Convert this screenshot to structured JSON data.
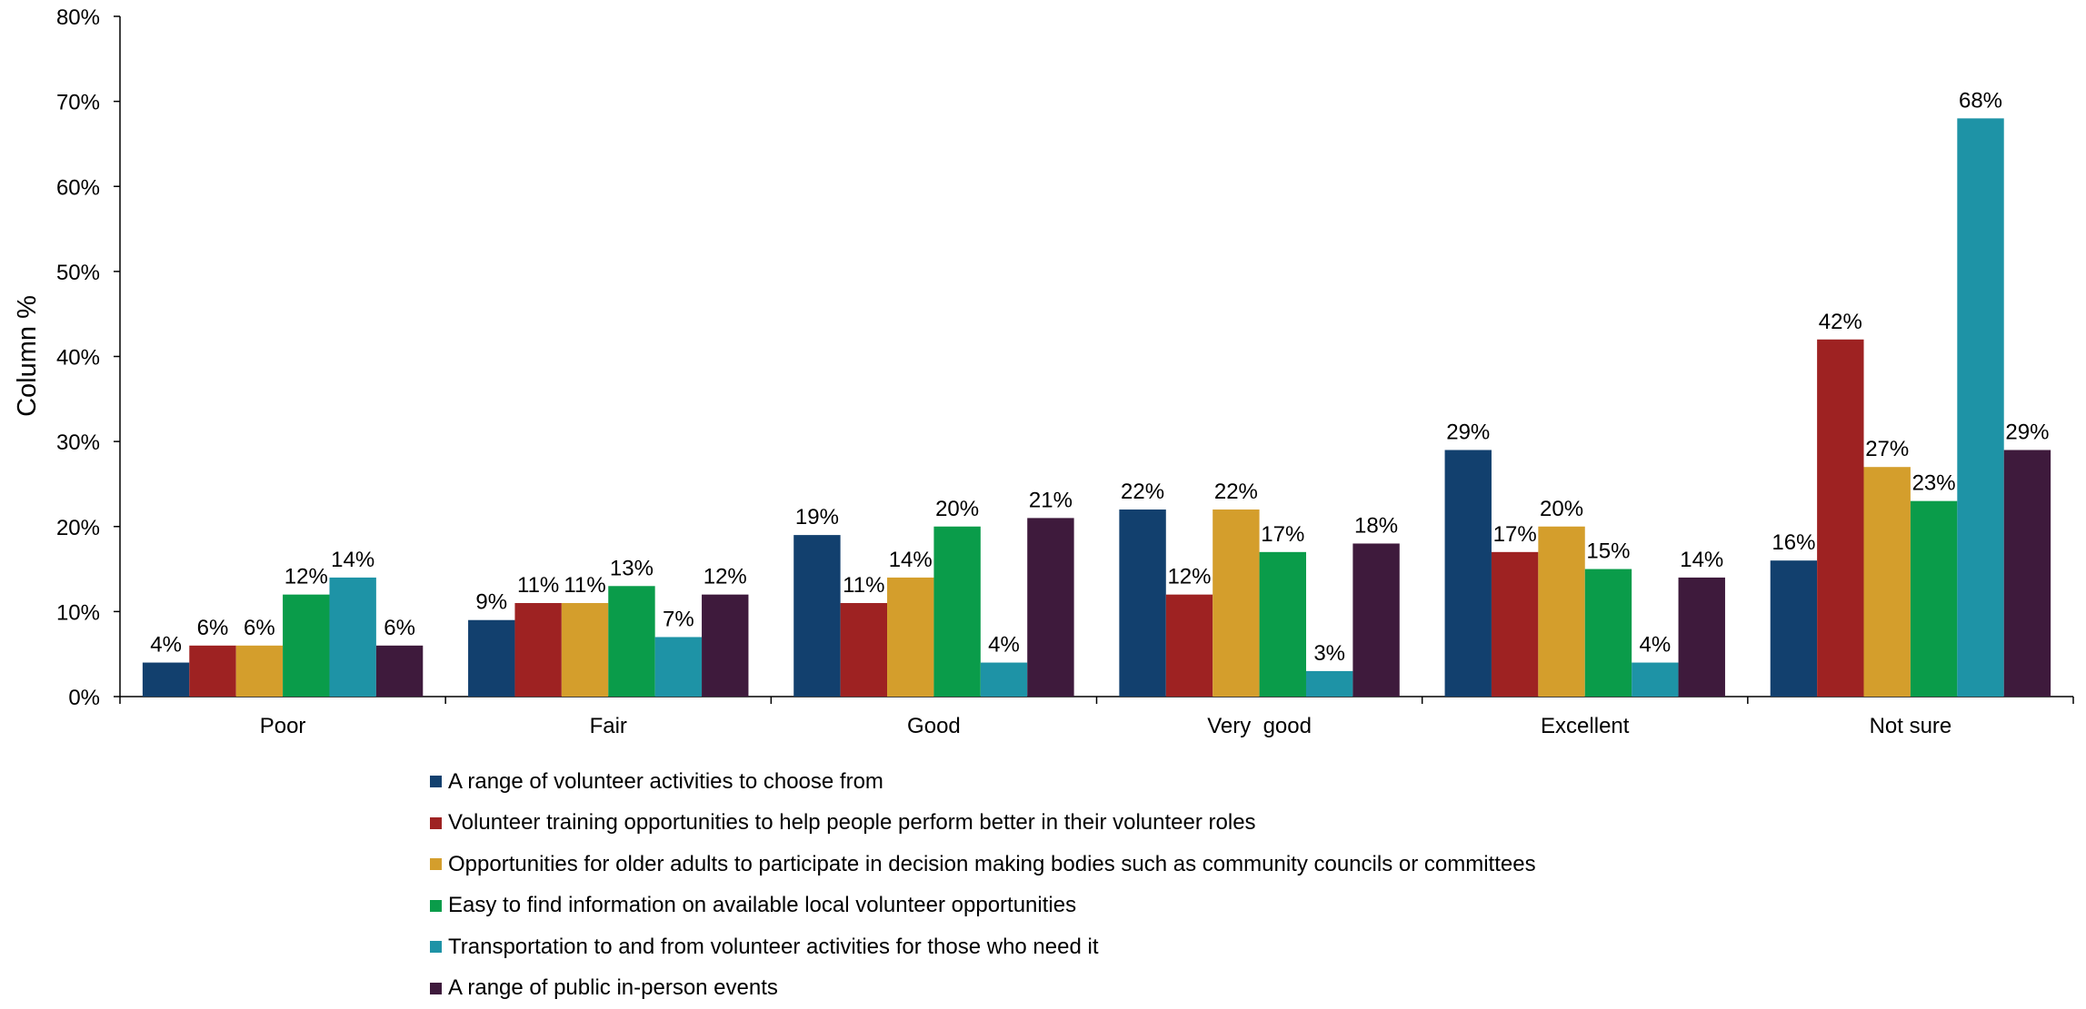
{
  "chart_data": {
    "type": "bar",
    "ylabel": "Column %",
    "ylim": [
      0,
      80
    ],
    "y_ticks": [
      "0%",
      "10%",
      "20%",
      "30%",
      "40%",
      "50%",
      "60%",
      "70%",
      "80%"
    ],
    "categories": [
      "Poor",
      "Fair",
      "Good",
      "Very  good",
      "Excellent",
      "Not sure"
    ],
    "legend_position": "bottom",
    "grid": false,
    "series": [
      {
        "name": "A range of volunteer activities to choose from",
        "color": "#12406e",
        "values": [
          4,
          9,
          19,
          22,
          29,
          16
        ],
        "labels": [
          "4%",
          "9%",
          "19%",
          "22%",
          "29%",
          "16%"
        ]
      },
      {
        "name": "Volunteer training opportunities to help people perform better in their volunteer roles",
        "color": "#9e2222",
        "values": [
          6,
          11,
          11,
          12,
          17,
          42
        ],
        "labels": [
          "6%",
          "11%",
          "11%",
          "12%",
          "17%",
          "42%"
        ]
      },
      {
        "name": "Opportunities for older adults to participate in decision making bodies such as community councils or committees",
        "color": "#d49e2c",
        "values": [
          6,
          11,
          14,
          22,
          20,
          27
        ],
        "labels": [
          "6%",
          "11%",
          "14%",
          "22%",
          "20%",
          "27%"
        ]
      },
      {
        "name": "Easy to find information on available local volunteer opportunities",
        "color": "#0a9c4a",
        "values": [
          12,
          13,
          20,
          17,
          15,
          23
        ],
        "labels": [
          "12%",
          "13%",
          "20%",
          "17%",
          "15%",
          "23%"
        ]
      },
      {
        "name": "Transportation to and from volunteer activities for those who need it",
        "color": "#1e93a6",
        "values": [
          14,
          7,
          4,
          3,
          4,
          68
        ],
        "labels": [
          "14%",
          "7%",
          "4%",
          "3%",
          "4%",
          "68%"
        ]
      },
      {
        "name": "A range of public in-person events",
        "color": "#3e1a3c",
        "values": [
          6,
          12,
          21,
          18,
          14,
          29
        ],
        "labels": [
          "6%",
          "12%",
          "21%",
          "18%",
          "14%",
          "29%"
        ]
      }
    ]
  }
}
